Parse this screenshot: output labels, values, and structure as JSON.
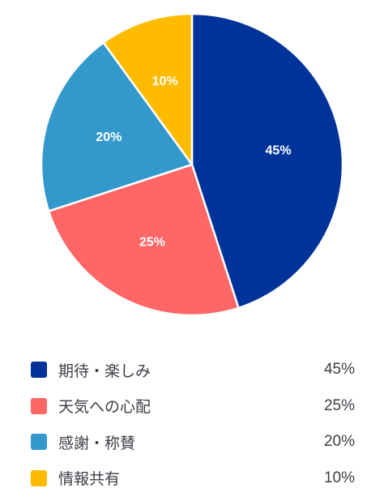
{
  "chart_data": {
    "type": "pie",
    "categories": [
      "期待・楽しみ",
      "天気への心配",
      "感謝・称賛",
      "情報共有"
    ],
    "values": [
      45,
      25,
      20,
      10
    ],
    "value_labels": [
      "45%",
      "25%",
      "20%",
      "10%"
    ],
    "colors": [
      "#003399",
      "#ff6666",
      "#3399cc",
      "#ffbb00"
    ],
    "start_angle_deg": 0,
    "direction": "clockwise",
    "legend_position": "bottom"
  }
}
